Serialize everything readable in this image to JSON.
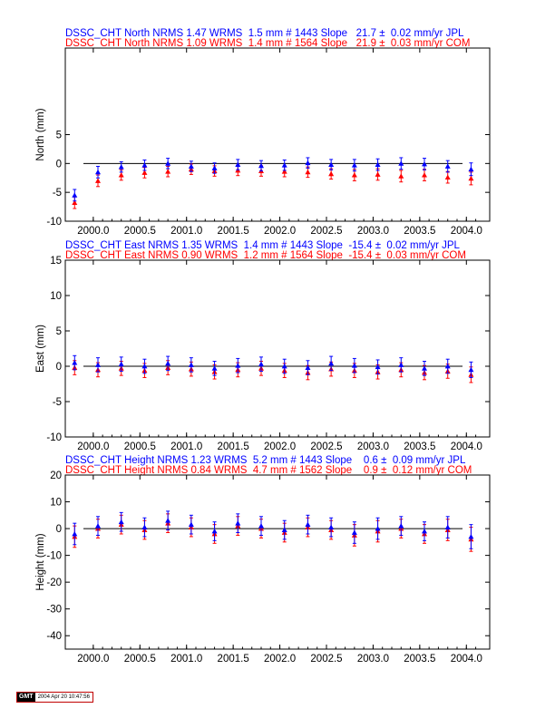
{
  "colors": {
    "jpl": "#0000ff",
    "com": "#ff0000",
    "axis": "#000000"
  },
  "chart_data": [
    {
      "type": "scatter",
      "titles": {
        "jpl": "DSSC_CHT North NRMS 1.47 WRMS  1.5 mm # 1443 Slope   21.7 ±  0.02 mm/yr JPL",
        "com": "DSSC_CHT North NRMS 1.09 WRMS  1.4 mm # 1564 Slope   21.9 ±  0.03 mm/yr COM"
      },
      "ylabel": "North (mm)",
      "xlim": [
        1999.7,
        2004.25
      ],
      "ylim": [
        -10,
        20
      ],
      "xticks": [
        "2000.0",
        "2000.5",
        "2001.0",
        "2001.5",
        "2002.0",
        "2002.5",
        "2003.0",
        "2003.5",
        "2004.0"
      ],
      "xtick_values": [
        2000.0,
        2000.5,
        2001.0,
        2001.5,
        2002.0,
        2002.5,
        2003.0,
        2003.5,
        2004.0
      ],
      "yticks": [
        "-10",
        "-5",
        "0",
        "5"
      ],
      "ytick_values": [
        -10,
        -5,
        0,
        5
      ],
      "series": [
        {
          "name": "JPL",
          "x": [
            1999.8,
            2000.05,
            2000.3,
            2000.55,
            2000.8,
            2001.05,
            2001.3,
            2001.55,
            2001.8,
            2002.05,
            2002.3,
            2002.55,
            2002.8,
            2003.05,
            2003.3,
            2003.55,
            2003.8,
            2004.05
          ],
          "y": [
            -5.5,
            -1.5,
            -0.6,
            -0.3,
            0.0,
            -0.5,
            -0.8,
            -0.2,
            -0.4,
            -0.3,
            0.1,
            -0.2,
            -0.3,
            -0.2,
            0.0,
            -0.1,
            -0.5,
            -1.0
          ],
          "err": [
            1.0,
            1.0,
            0.9,
            0.9,
            0.9,
            0.9,
            0.9,
            0.9,
            0.9,
            0.9,
            0.9,
            0.9,
            1.0,
            1.0,
            1.0,
            1.0,
            1.0,
            1.1
          ]
        },
        {
          "name": "COM",
          "x": [
            1999.8,
            2000.05,
            2000.3,
            2000.55,
            2000.8,
            2001.05,
            2001.3,
            2001.55,
            2001.8,
            2002.05,
            2002.3,
            2002.55,
            2002.8,
            2003.05,
            2003.3,
            2003.55,
            2003.8,
            2004.05
          ],
          "y": [
            -6.8,
            -3.0,
            -2.0,
            -1.6,
            -1.4,
            -1.0,
            -1.3,
            -1.2,
            -1.3,
            -1.4,
            -1.5,
            -1.8,
            -2.0,
            -1.9,
            -2.2,
            -2.0,
            -2.4,
            -2.6
          ],
          "err": [
            1.0,
            1.0,
            0.9,
            0.9,
            0.9,
            0.9,
            0.9,
            0.9,
            0.9,
            0.9,
            0.9,
            0.9,
            1.0,
            1.0,
            1.0,
            1.0,
            1.0,
            1.1
          ]
        }
      ]
    },
    {
      "type": "scatter",
      "titles": {
        "jpl": "DSSC_CHT East NRMS 1.35 WRMS  1.4 mm # 1443 Slope  -15.4 ±  0.02 mm/yr JPL",
        "com": "DSSC_CHT East NRMS 0.90 WRMS  1.2 mm # 1564 Slope  -15.4 ±  0.03 mm/yr COM"
      },
      "ylabel": "East (mm)",
      "xlim": [
        1999.7,
        2004.25
      ],
      "ylim": [
        -10,
        15
      ],
      "xticks": [
        "2000.0",
        "2000.5",
        "2001.0",
        "2001.5",
        "2002.0",
        "2002.5",
        "2003.0",
        "2003.5",
        "2004.0"
      ],
      "xtick_values": [
        2000.0,
        2000.5,
        2001.0,
        2001.5,
        2002.0,
        2002.5,
        2003.0,
        2003.5,
        2004.0
      ],
      "yticks": [
        "-10",
        "-5",
        "0",
        "5",
        "10",
        "15"
      ],
      "ytick_values": [
        -10,
        -5,
        0,
        5,
        10,
        15
      ],
      "series": [
        {
          "name": "JPL",
          "x": [
            1999.8,
            2000.05,
            2000.3,
            2000.55,
            2000.8,
            2001.05,
            2001.3,
            2001.55,
            2001.8,
            2002.05,
            2002.3,
            2002.55,
            2002.8,
            2003.05,
            2003.3,
            2003.55,
            2003.8,
            2004.05
          ],
          "y": [
            0.5,
            0.2,
            0.3,
            0.0,
            0.4,
            0.2,
            -0.3,
            0.1,
            0.3,
            0.0,
            -0.2,
            0.4,
            0.1,
            -0.1,
            0.2,
            -0.3,
            0.0,
            -0.5
          ],
          "err": [
            1.0,
            1.0,
            1.0,
            1.0,
            1.0,
            1.0,
            1.0,
            1.0,
            1.0,
            1.0,
            1.0,
            1.0,
            1.0,
            1.0,
            1.0,
            1.0,
            1.0,
            1.1
          ]
        },
        {
          "name": "COM",
          "x": [
            1999.8,
            2000.05,
            2000.3,
            2000.55,
            2000.8,
            2001.05,
            2001.3,
            2001.55,
            2001.8,
            2002.05,
            2002.3,
            2002.55,
            2002.8,
            2003.05,
            2003.3,
            2003.55,
            2003.8,
            2004.05
          ],
          "y": [
            -0.2,
            -0.5,
            -0.3,
            -0.6,
            -0.2,
            -0.4,
            -0.8,
            -0.5,
            -0.3,
            -0.6,
            -0.9,
            -0.4,
            -0.6,
            -0.8,
            -0.5,
            -0.9,
            -0.7,
            -1.2
          ],
          "err": [
            1.0,
            1.0,
            1.0,
            1.0,
            1.0,
            1.0,
            1.0,
            1.0,
            1.0,
            1.0,
            1.0,
            1.0,
            1.0,
            1.0,
            1.0,
            1.0,
            1.0,
            1.1
          ]
        }
      ]
    },
    {
      "type": "scatter",
      "titles": {
        "jpl": "DSSC_CHT Height NRMS 1.23 WRMS  5.2 mm # 1443 Slope    0.6 ±  0.09 mm/yr JPL",
        "com": "DSSC_CHT Height NRMS 0.84 WRMS  4.7 mm # 1562 Slope    0.9 ±  0.12 mm/yr COM"
      },
      "ylabel": "Height (mm)",
      "xlim": [
        1999.7,
        2004.25
      ],
      "ylim": [
        -45,
        20
      ],
      "xticks": [
        "2000.0",
        "2000.5",
        "2001.0",
        "2001.5",
        "2002.0",
        "2002.5",
        "2003.0",
        "2003.5",
        "2004.0"
      ],
      "xtick_values": [
        2000.0,
        2000.5,
        2001.0,
        2001.5,
        2002.0,
        2002.5,
        2003.0,
        2003.5,
        2004.0
      ],
      "yticks": [
        "-40",
        "-30",
        "-20",
        "-10",
        "0",
        "10",
        "20"
      ],
      "ytick_values": [
        -40,
        -30,
        -20,
        -10,
        0,
        10,
        20
      ],
      "series": [
        {
          "name": "JPL",
          "x": [
            1999.8,
            2000.05,
            2000.3,
            2000.55,
            2000.8,
            2001.05,
            2001.3,
            2001.55,
            2001.8,
            2002.05,
            2002.3,
            2002.55,
            2002.8,
            2003.05,
            2003.3,
            2003.55,
            2003.8,
            2004.05
          ],
          "y": [
            -2.0,
            1.0,
            2.5,
            0.5,
            3.0,
            1.5,
            -1.0,
            2.0,
            1.0,
            -0.5,
            1.5,
            0.5,
            -1.5,
            0.0,
            1.0,
            -1.0,
            0.5,
            -3.0
          ],
          "err": [
            4.0,
            3.5,
            3.5,
            3.5,
            3.5,
            3.5,
            3.5,
            3.5,
            3.5,
            3.5,
            3.5,
            3.5,
            4.0,
            4.0,
            3.5,
            3.5,
            4.0,
            4.5
          ]
        },
        {
          "name": "COM",
          "x": [
            1999.8,
            2000.05,
            2000.3,
            2000.55,
            2000.8,
            2001.05,
            2001.3,
            2001.55,
            2001.8,
            2002.05,
            2002.3,
            2002.55,
            2002.8,
            2003.05,
            2003.3,
            2003.55,
            2003.8,
            2004.05
          ],
          "y": [
            -3.0,
            0.0,
            1.5,
            -0.5,
            2.0,
            0.5,
            -2.0,
            1.0,
            0.0,
            -1.5,
            0.5,
            -0.5,
            -2.5,
            -1.0,
            0.0,
            -2.0,
            -0.5,
            -4.0
          ],
          "err": [
            4.0,
            3.5,
            3.5,
            3.5,
            3.5,
            3.5,
            3.5,
            3.5,
            3.5,
            3.5,
            3.5,
            3.5,
            4.0,
            4.0,
            3.5,
            3.5,
            4.0,
            4.5
          ]
        }
      ]
    }
  ],
  "footer": {
    "logo": "GMT",
    "timestamp": "2004 Apr 20 10:47:56"
  }
}
